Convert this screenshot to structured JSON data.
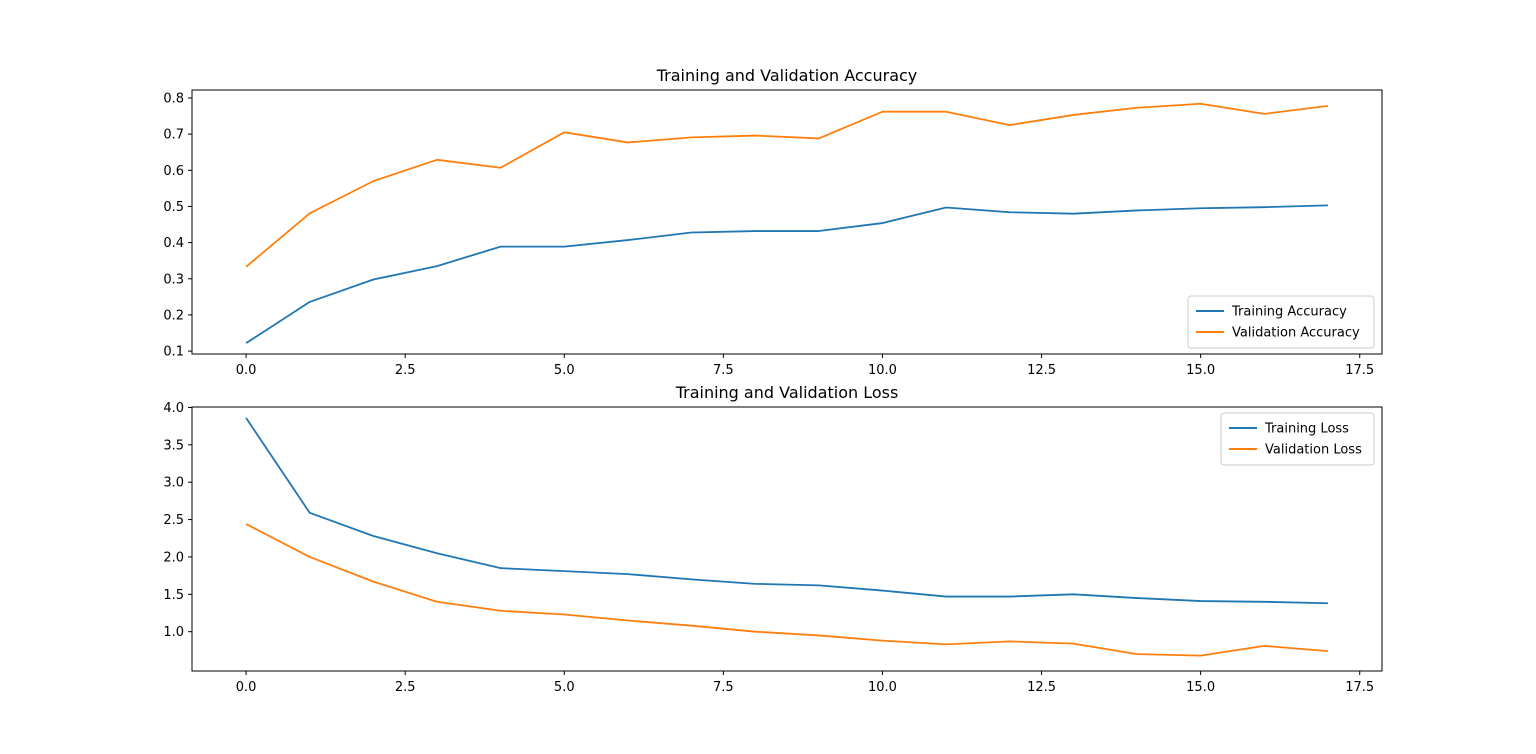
{
  "chart_data": [
    {
      "type": "line",
      "title": "Training and Validation Accuracy",
      "xlabel": "",
      "ylabel": "",
      "x": [
        0,
        1,
        2,
        3,
        4,
        5,
        6,
        7,
        8,
        9,
        10,
        11,
        12,
        13,
        14,
        15,
        16,
        17
      ],
      "series": [
        {
          "name": "Training Accuracy",
          "color": "#1f77b4",
          "values": [
            0.122,
            0.236,
            0.298,
            0.335,
            0.389,
            0.389,
            0.407,
            0.428,
            0.432,
            0.432,
            0.454,
            0.497,
            0.484,
            0.48,
            0.489,
            0.495,
            0.498,
            0.503
          ]
        },
        {
          "name": "Validation Accuracy",
          "color": "#ff7f0e",
          "values": [
            0.333,
            0.481,
            0.57,
            0.629,
            0.607,
            0.705,
            0.677,
            0.691,
            0.696,
            0.688,
            0.762,
            0.762,
            0.725,
            0.753,
            0.773,
            0.784,
            0.756,
            0.778
          ]
        }
      ],
      "xlim": [
        -0.85,
        17.85
      ],
      "ylim": [
        0.092,
        0.822
      ],
      "xticks": [
        0.0,
        2.5,
        5.0,
        7.5,
        10.0,
        12.5,
        15.0,
        17.5
      ],
      "xtick_labels": [
        "0.0",
        "2.5",
        "5.0",
        "7.5",
        "10.0",
        "12.5",
        "15.0",
        "17.5"
      ],
      "yticks": [
        0.1,
        0.2,
        0.3,
        0.4,
        0.5,
        0.6,
        0.7,
        0.8
      ],
      "ytick_labels": [
        "0.1",
        "0.2",
        "0.3",
        "0.4",
        "0.5",
        "0.6",
        "0.7",
        "0.8"
      ],
      "legend_loc": "lower right",
      "grid": false
    },
    {
      "type": "line",
      "title": "Training and Validation Loss",
      "xlabel": "",
      "ylabel": "",
      "x": [
        0,
        1,
        2,
        3,
        4,
        5,
        6,
        7,
        8,
        9,
        10,
        11,
        12,
        13,
        14,
        15,
        16,
        17
      ],
      "series": [
        {
          "name": "Training Loss",
          "color": "#1f77b4",
          "values": [
            3.86,
            2.59,
            2.28,
            2.05,
            1.85,
            1.81,
            1.77,
            1.7,
            1.64,
            1.62,
            1.55,
            1.47,
            1.47,
            1.5,
            1.45,
            1.41,
            1.4,
            1.38
          ]
        },
        {
          "name": "Validation Loss",
          "color": "#ff7f0e",
          "values": [
            2.44,
            2.0,
            1.67,
            1.4,
            1.28,
            1.23,
            1.15,
            1.08,
            1.0,
            0.95,
            0.88,
            0.83,
            0.87,
            0.84,
            0.7,
            0.68,
            0.81,
            0.74
          ]
        }
      ],
      "xlim": [
        -0.85,
        17.85
      ],
      "ylim": [
        0.474,
        4.006
      ],
      "xticks": [
        0.0,
        2.5,
        5.0,
        7.5,
        10.0,
        12.5,
        15.0,
        17.5
      ],
      "xtick_labels": [
        "0.0",
        "2.5",
        "5.0",
        "7.5",
        "10.0",
        "12.5",
        "15.0",
        "17.5"
      ],
      "yticks": [
        1.0,
        1.5,
        2.0,
        2.5,
        3.0,
        3.5,
        4.0
      ],
      "ytick_labels": [
        "1.0",
        "1.5",
        "2.0",
        "2.5",
        "3.0",
        "3.5",
        "4.0"
      ],
      "legend_loc": "upper right",
      "grid": false
    }
  ]
}
